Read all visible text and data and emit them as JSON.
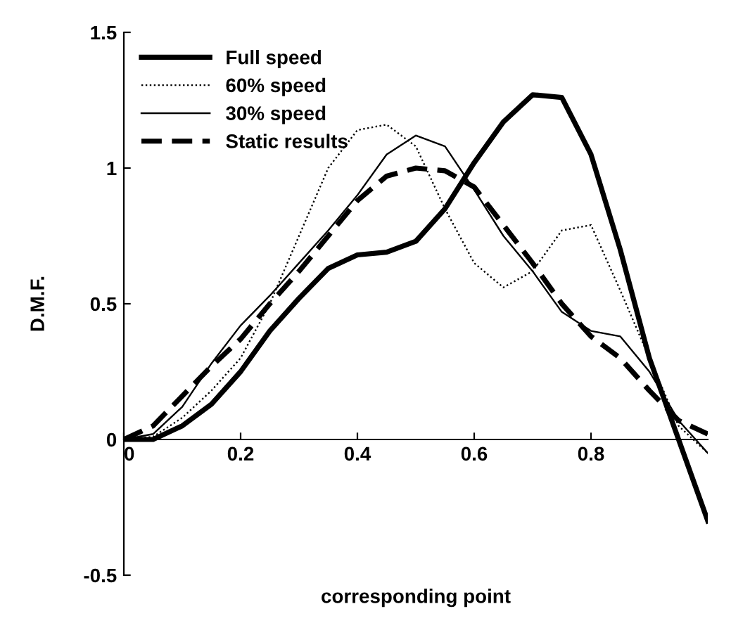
{
  "chart_data": {
    "type": "line",
    "xlabel": "corresponding point",
    "ylabel": "D.M.F.",
    "xlim": [
      0,
      1
    ],
    "ylim": [
      -0.5,
      1.5
    ],
    "xticks": [
      0,
      0.2,
      0.4,
      0.6,
      0.8
    ],
    "yticks": [
      -0.5,
      0,
      0.5,
      1,
      1.5
    ],
    "grid": false,
    "legend": "top left",
    "x": [
      0,
      0.05,
      0.1,
      0.15,
      0.2,
      0.25,
      0.3,
      0.35,
      0.4,
      0.45,
      0.5,
      0.55,
      0.6,
      0.65,
      0.7,
      0.75,
      0.8,
      0.85,
      0.9,
      0.95,
      1.0
    ],
    "series": [
      {
        "name": "Full speed",
        "color": "#000000",
        "line_style": "solid",
        "values": [
          0,
          0,
          0.05,
          0.13,
          0.25,
          0.4,
          0.52,
          0.63,
          0.68,
          0.69,
          0.73,
          0.85,
          1.02,
          1.17,
          1.27,
          1.26,
          1.05,
          0.7,
          0.3,
          0.0,
          -0.3
        ]
      },
      {
        "name": "60% speed",
        "color": "#000000",
        "line_style": "dotted",
        "values": [
          0,
          0.01,
          0.08,
          0.18,
          0.3,
          0.5,
          0.75,
          1.0,
          1.14,
          1.16,
          1.08,
          0.85,
          0.65,
          0.56,
          0.62,
          0.77,
          0.79,
          0.55,
          0.3,
          0.05,
          -0.05
        ]
      },
      {
        "name": "30% speed",
        "color": "#000000",
        "line_style": "solid",
        "values": [
          0,
          0.02,
          0.12,
          0.28,
          0.42,
          0.53,
          0.65,
          0.77,
          0.9,
          1.05,
          1.12,
          1.08,
          0.92,
          0.75,
          0.62,
          0.47,
          0.4,
          0.38,
          0.25,
          0.07,
          -0.05
        ]
      },
      {
        "name": "Static results",
        "color": "#000000",
        "line_style": "dashed",
        "values": [
          0,
          0.05,
          0.16,
          0.27,
          0.37,
          0.5,
          0.62,
          0.75,
          0.88,
          0.97,
          1.0,
          0.99,
          0.93,
          0.79,
          0.65,
          0.5,
          0.38,
          0.3,
          0.18,
          0.07,
          0.02
        ]
      }
    ]
  }
}
